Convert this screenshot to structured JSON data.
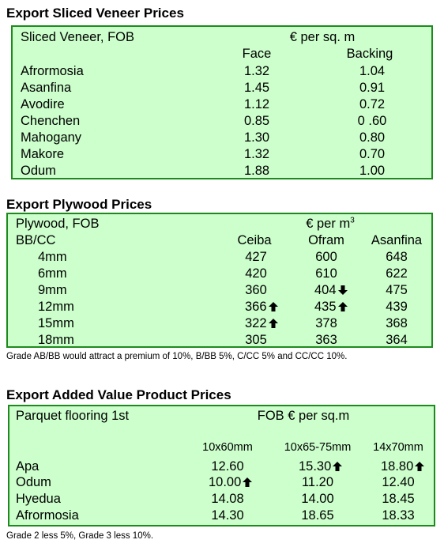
{
  "veneer": {
    "heading": "Export Sliced Veneer Prices",
    "label": "Sliced Veneer, FOB",
    "unit": "€ per sq. m",
    "col_face": "Face",
    "col_backing": "Backing",
    "rows": [
      {
        "name": "Afrormosia",
        "face": "1.32",
        "backing": "1.04"
      },
      {
        "name": "Asanfina",
        "face": "1.45",
        "backing": "0.91"
      },
      {
        "name": "Avodire",
        "face": "1.12",
        "backing": "0.72"
      },
      {
        "name": "Chenchen",
        "face": "0.85",
        "backing": "0 .60"
      },
      {
        "name": "Mahogany",
        "face": "1.30",
        "backing": "0.80"
      },
      {
        "name": "Makore",
        "face": "1.32",
        "backing": "0.70"
      },
      {
        "name": "Odum",
        "face": "1.88",
        "backing": "1.00"
      }
    ]
  },
  "plywood": {
    "heading": "Export Plywood Prices",
    "label": "Plywood, FOB",
    "unit": "€ per m",
    "unit_sup": "3",
    "grade": "BB/CC",
    "cols": [
      "Ceiba",
      "Ofram",
      "Asanfina"
    ],
    "rows": [
      {
        "size": "4mm",
        "ceiba": "427",
        "ofram": "600",
        "asanfina": "648"
      },
      {
        "size": "6mm",
        "ceiba": "420",
        "ofram": "610",
        "asanfina": "622"
      },
      {
        "size": "9mm",
        "ceiba": "360",
        "ofram": "404",
        "asanfina": "475"
      },
      {
        "size": "12mm",
        "ceiba": "366",
        "ofram": "435",
        "asanfina": "439"
      },
      {
        "size": "15mm",
        "ceiba": "322",
        "ofram": "378",
        "asanfina": "368"
      },
      {
        "size": "18mm",
        "ceiba": "305",
        "ofram": "363",
        "asanfina": "364"
      }
    ],
    "note": "Grade AB/BB would attract a premium of 10%, B/BB 5%, C/CC 5% and CC/CC 10%."
  },
  "added_value": {
    "heading": "Export Added Value Product Prices",
    "label": "Parquet flooring 1st",
    "unit": "FOB € per sq.m",
    "cols": [
      "10x60mm",
      "10x65-75mm",
      "14x70mm"
    ],
    "rows": [
      {
        "name": "Apa",
        "c1": "12.60",
        "c2": "15.30",
        "c3": "18.80"
      },
      {
        "name": "Odum",
        "c1": "10.00",
        "c2": "11.20",
        "c3": "12.40"
      },
      {
        "name": "Hyedua",
        "c1": "14.08",
        "c2": "14.00",
        "c3": "18.45"
      },
      {
        "name": "Afrormosia",
        "c1": "14.30",
        "c2": "18.65",
        "c3": "18.33"
      }
    ],
    "note": "Grade 2 less 5%, Grade 3 less 10%."
  },
  "icons": {
    "up": "arrow-up-icon",
    "down": "arrow-down-icon"
  }
}
